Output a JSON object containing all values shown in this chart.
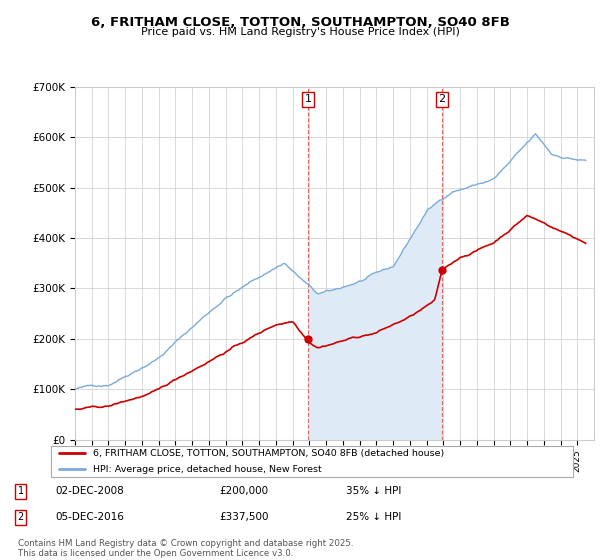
{
  "title": "6, FRITHAM CLOSE, TOTTON, SOUTHAMPTON, SO40 8FB",
  "subtitle": "Price paid vs. HM Land Registry's House Price Index (HPI)",
  "ylim": [
    0,
    700000
  ],
  "yticks": [
    0,
    100000,
    200000,
    300000,
    400000,
    500000,
    600000,
    700000
  ],
  "ytick_labels": [
    "£0",
    "£100K",
    "£200K",
    "£300K",
    "£400K",
    "£500K",
    "£600K",
    "£700K"
  ],
  "line1_color": "#cc0000",
  "line2_color": "#7aaadd",
  "fill_color": "#deeaf5",
  "marker1_x": 2008.92,
  "marker1_y_red": 200000,
  "marker2_x": 2016.92,
  "marker2_y_red": 337500,
  "legend1": "6, FRITHAM CLOSE, TOTTON, SOUTHAMPTON, SO40 8FB (detached house)",
  "legend2": "HPI: Average price, detached house, New Forest",
  "footer": "Contains HM Land Registry data © Crown copyright and database right 2025.\nThis data is licensed under the Open Government Licence v3.0.",
  "xmin": 1995,
  "xmax": 2026
}
